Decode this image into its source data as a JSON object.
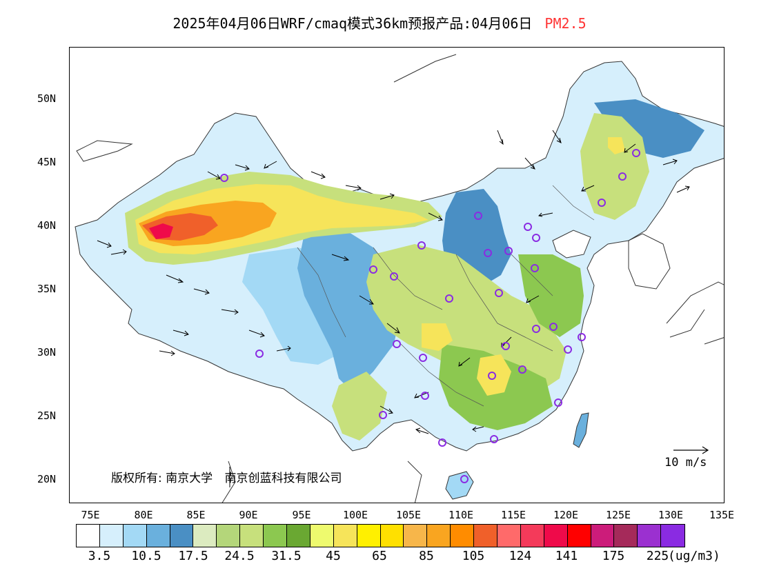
{
  "title": {
    "main": "2025年04月06日WRF/cmaq模式36km预报产品:04月06日",
    "variable": "PM2.5",
    "variable_color": "#ff3333"
  },
  "axes": {
    "lat_labels": [
      "50N",
      "45N",
      "40N",
      "35N",
      "30N",
      "25N",
      "20N"
    ],
    "lon_labels": [
      "75E",
      "80E",
      "85E",
      "90E",
      "95E",
      "100E",
      "105E",
      "110E",
      "115E",
      "120E",
      "125E",
      "130E",
      "135E"
    ]
  },
  "credit": {
    "label": "版权所有:",
    "org1": "南京大学",
    "org2": "南京创蓝科技有限公司"
  },
  "wind_scale": {
    "label": "10 m/s"
  },
  "colorbar": {
    "unit": "(ug/m3)",
    "colors": [
      "#ffffff",
      "#d6effc",
      "#a3d9f5",
      "#6ab0dd",
      "#4a8fc4",
      "#dcebc0",
      "#b4d67a",
      "#c7e07c",
      "#8cc850",
      "#6aa832",
      "#eefa6e",
      "#f6e45a",
      "#fff000",
      "#ffe000",
      "#f7b64a",
      "#f9a520",
      "#ff8c00",
      "#f0602a",
      "#ff6a6a",
      "#f43a5a",
      "#ef0a4a",
      "#ff0000",
      "#cc1c7a",
      "#a52a5a",
      "#9b30d0",
      "#8a2be2"
    ],
    "labels": [
      "3.5",
      "10.5",
      "17.5",
      "24.5",
      "31.5",
      "45",
      "65",
      "85",
      "105",
      "124",
      "141",
      "175",
      "225"
    ]
  },
  "map": {
    "palette": {
      "ocean": "#ffffff",
      "very_low": "#d6effc",
      "low": "#a3d9f5",
      "low_mid": "#6ab0dd",
      "mid_blue": "#4a8fc4",
      "light_green": "#c7e07c",
      "green": "#8cc850",
      "yellow": "#f6e45a",
      "orange": "#f9a520",
      "red": "#f0602a",
      "crimson": "#ef0a4a",
      "circle": "#8a2be2"
    }
  }
}
